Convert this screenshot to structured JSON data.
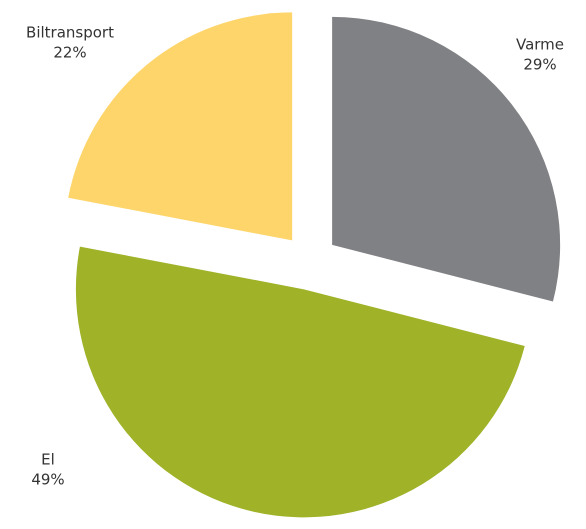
{
  "chart_data": {
    "type": "pie",
    "categories": [
      "Varme",
      "El",
      "Biltransport"
    ],
    "values": [
      29,
      49,
      22
    ],
    "value_labels": [
      "29%",
      "49%",
      "22%"
    ],
    "colors": [
      "#808184",
      "#9fb228",
      "#fdd56a"
    ]
  }
}
